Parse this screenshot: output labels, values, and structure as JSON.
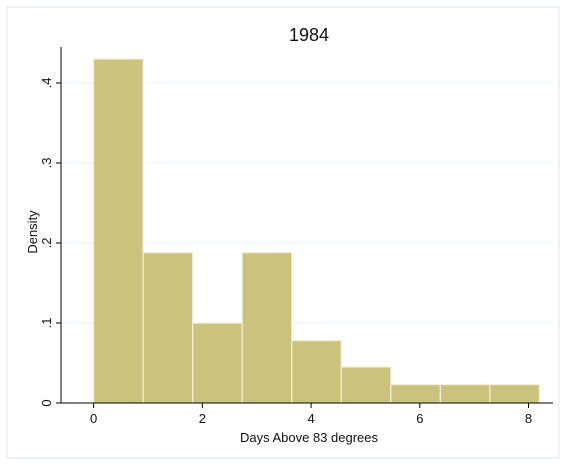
{
  "chart_data": {
    "type": "bar",
    "subtype": "histogram",
    "title": "1984",
    "xlabel": "Days Above 83 degrees",
    "ylabel": "Density",
    "xlim": [
      -0.6,
      8.45
    ],
    "ylim": [
      0,
      0.445
    ],
    "x_ticks": [
      0,
      2,
      4,
      6,
      8
    ],
    "x_tick_labels": [
      "0",
      "2",
      "4",
      "6",
      "8"
    ],
    "y_ticks": [
      0,
      0.1,
      0.2,
      0.3,
      0.4
    ],
    "y_tick_labels": [
      "0",
      ".1",
      ".2",
      ".3",
      ".4"
    ],
    "grid": true,
    "bins": [
      {
        "x0": 0.0,
        "x1": 0.911,
        "value": 0.43
      },
      {
        "x0": 0.911,
        "x1": 1.822,
        "value": 0.188
      },
      {
        "x0": 1.822,
        "x1": 2.733,
        "value": 0.1
      },
      {
        "x0": 2.733,
        "x1": 3.644,
        "value": 0.188
      },
      {
        "x0": 3.644,
        "x1": 4.556,
        "value": 0.078
      },
      {
        "x0": 4.556,
        "x1": 5.467,
        "value": 0.045
      },
      {
        "x0": 5.467,
        "x1": 6.378,
        "value": 0.023
      },
      {
        "x0": 6.378,
        "x1": 7.289,
        "value": 0.023
      },
      {
        "x0": 7.289,
        "x1": 8.2,
        "value": 0.023
      }
    ],
    "colors": {
      "bar_fill": "#cbc37d",
      "bar_edge": "#f2f0dc",
      "grid": "#eaf0f2",
      "title": "#1f3a5a",
      "axis": "#000000",
      "frame": "#dde6ea"
    }
  }
}
